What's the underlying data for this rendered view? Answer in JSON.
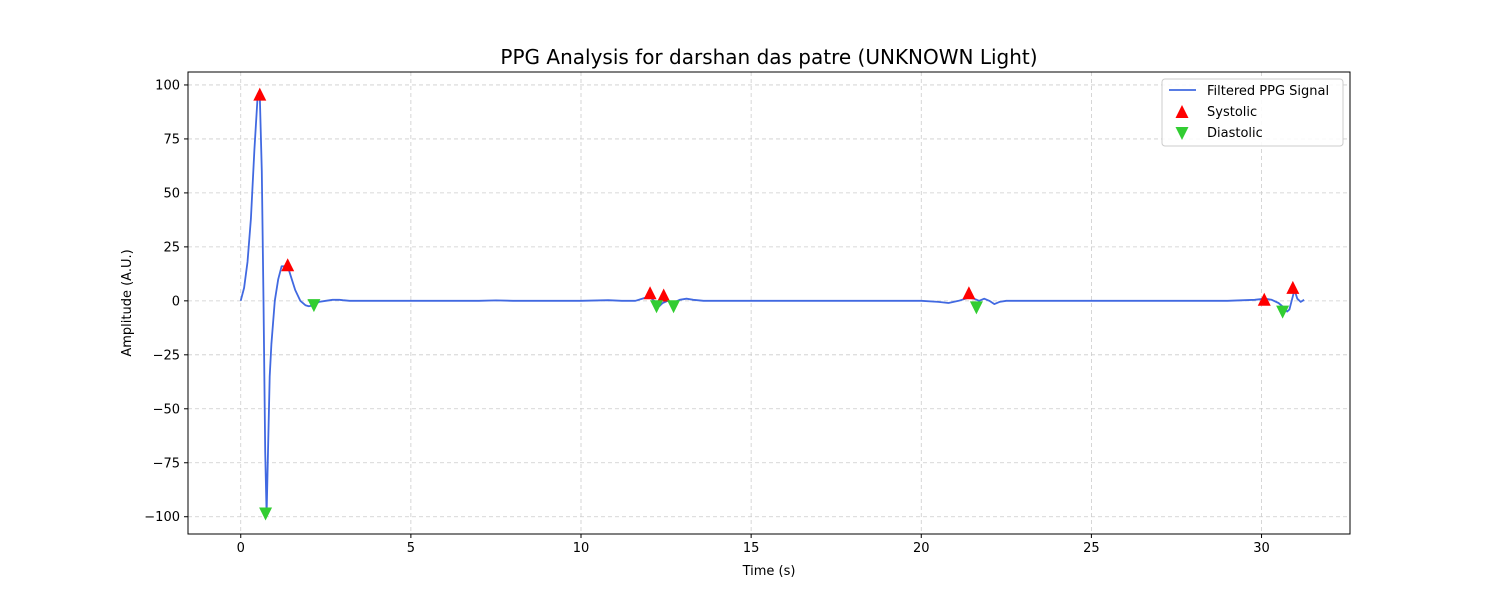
{
  "chart_data": {
    "type": "line",
    "title": "PPG Analysis for darshan das patre (UNKNOWN Light)",
    "xlabel": "Time (s)",
    "ylabel": "Amplitude (A.U.)",
    "xlim": [
      -1.55,
      32.6
    ],
    "ylim": [
      -108,
      106
    ],
    "xticks": [
      0,
      5,
      10,
      15,
      20,
      25,
      30
    ],
    "yticks": [
      100,
      75,
      50,
      25,
      0,
      -25,
      -50,
      -75,
      -100
    ],
    "xtick_labels": [
      "0",
      "5",
      "10",
      "15",
      "20",
      "25",
      "30"
    ],
    "ytick_labels": [
      "100",
      "75",
      "50",
      "25",
      "0",
      "−25",
      "−50",
      "−75",
      "−100"
    ],
    "grid": true,
    "legend_position": "top-right",
    "colors": {
      "signal": "#4169e1",
      "systolic": "#ff0000",
      "diastolic": "#32cd32",
      "grid": "#cccccc"
    },
    "series": [
      {
        "name": "Filtered PPG Signal",
        "kind": "line",
        "x": [
          0,
          0.1,
          0.2,
          0.3,
          0.4,
          0.5,
          0.56,
          0.62,
          0.67,
          0.72,
          0.76,
          0.8,
          0.85,
          0.9,
          1.0,
          1.1,
          1.2,
          1.3,
          1.4,
          1.5,
          1.6,
          1.75,
          1.9,
          2.0,
          2.15,
          2.3,
          2.5,
          2.7,
          2.9,
          3.0,
          3.2,
          3.5,
          4.0,
          5,
          6,
          7,
          7.5,
          8,
          9,
          10,
          10.8,
          11.2,
          11.6,
          11.9,
          12.0,
          12.15,
          12.3,
          12.4,
          12.55,
          12.7,
          12.9,
          13.1,
          13.3,
          13.6,
          14,
          15,
          16,
          17,
          18,
          19,
          20,
          20.5,
          20.8,
          21.1,
          21.4,
          21.55,
          21.7,
          21.85,
          22.0,
          22.15,
          22.3,
          22.5,
          23,
          24,
          25,
          26,
          27,
          28,
          29,
          29.8,
          30.1,
          30.3,
          30.5,
          30.65,
          30.75,
          30.82,
          30.9,
          30.97,
          31.05,
          31.15,
          31.25
        ],
        "values": [
          0,
          6,
          18,
          38,
          70,
          96,
          95,
          60,
          0,
          -70,
          -99,
          -70,
          -35,
          -20,
          0,
          10,
          16,
          16,
          15,
          10,
          5,
          0,
          -2,
          -2.5,
          -2,
          -0.5,
          0,
          0.5,
          0.5,
          0.3,
          0,
          0,
          0,
          0,
          0,
          0,
          0.2,
          0,
          0,
          0,
          0.3,
          0,
          0,
          1.5,
          2,
          0,
          -2.5,
          -1,
          0,
          -1,
          0.5,
          1,
          0.5,
          0,
          0,
          0,
          0,
          0,
          0,
          0,
          0,
          -0.5,
          -1,
          0,
          1.5,
          1,
          0,
          1,
          0,
          -1.5,
          -0.5,
          0,
          0,
          0,
          0,
          0,
          0,
          0,
          0,
          0.5,
          1,
          0.5,
          -1,
          -3,
          -5,
          -4,
          1,
          5,
          1,
          -0.5,
          0.5
        ]
      },
      {
        "name": "Systolic",
        "kind": "scatter",
        "marker": "triangle-up",
        "x": [
          0.56,
          1.38,
          12.03,
          12.43,
          21.4,
          30.08,
          30.92
        ],
        "values": [
          95.5,
          16.5,
          3.5,
          2.5,
          3.5,
          0.5,
          6.0
        ]
      },
      {
        "name": "Diastolic",
        "kind": "scatter",
        "marker": "triangle-down",
        "x": [
          0.73,
          2.15,
          12.22,
          12.72,
          21.62,
          30.62
        ],
        "values": [
          -98.5,
          -2.0,
          -2.5,
          -2.5,
          -3.0,
          -5.0
        ]
      }
    ]
  }
}
